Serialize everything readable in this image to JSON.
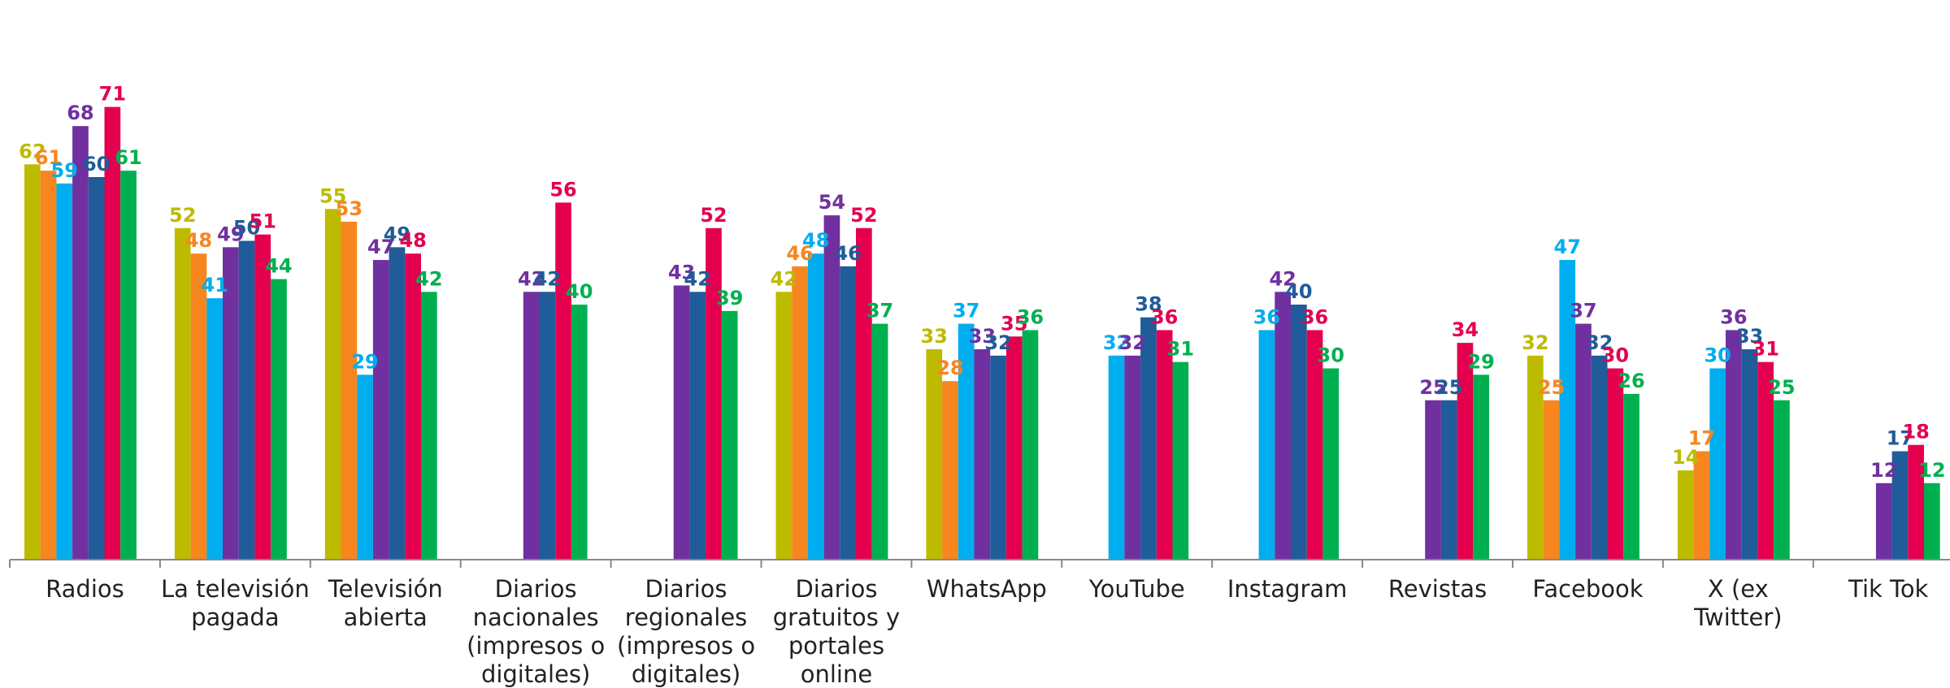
{
  "chart_data": {
    "type": "bar",
    "title": "",
    "xlabel": "",
    "ylabel": "",
    "ylim": [
      0,
      75
    ],
    "grid": false,
    "legend": "none",
    "categories": [
      [
        "Radios"
      ],
      [
        "La televisión",
        "pagada"
      ],
      [
        "Televisión",
        "abierta"
      ],
      [
        "Diarios",
        "nacionales",
        "(impresos o",
        "digitales)"
      ],
      [
        "Diarios",
        "regionales",
        "(impresos o",
        "digitales)"
      ],
      [
        "Diarios",
        "gratuitos y",
        "portales",
        "online"
      ],
      [
        "WhatsApp"
      ],
      [
        "YouTube"
      ],
      [
        "Instagram"
      ],
      [
        "Revistas"
      ],
      [
        "Facebook"
      ],
      [
        "X (ex",
        "Twitter)"
      ],
      [
        "Tik Tok"
      ]
    ],
    "series": [
      {
        "color": "#BDBB00",
        "values": [
          62,
          52,
          55,
          null,
          null,
          42,
          33,
          null,
          null,
          null,
          32,
          14,
          null
        ]
      },
      {
        "color": "#F7861F",
        "values": [
          61,
          48,
          53,
          null,
          null,
          46,
          28,
          null,
          null,
          null,
          25,
          17,
          null
        ]
      },
      {
        "color": "#00AEEF",
        "values": [
          59,
          41,
          29,
          null,
          null,
          48,
          37,
          32,
          36,
          null,
          47,
          30,
          null
        ]
      },
      {
        "color": "#7030A0",
        "values": [
          68,
          49,
          47,
          42,
          43,
          54,
          33,
          32,
          42,
          25,
          37,
          36,
          12
        ]
      },
      {
        "color": "#1F5C99",
        "values": [
          60,
          50,
          49,
          42,
          42,
          46,
          32,
          38,
          40,
          25,
          32,
          33,
          17
        ]
      },
      {
        "color": "#E5004F",
        "values": [
          71,
          51,
          48,
          56,
          52,
          52,
          35,
          36,
          36,
          34,
          30,
          31,
          18
        ]
      },
      {
        "color": "#00B050",
        "values": [
          61,
          44,
          42,
          40,
          39,
          37,
          36,
          31,
          30,
          29,
          26,
          25,
          12
        ]
      }
    ]
  }
}
